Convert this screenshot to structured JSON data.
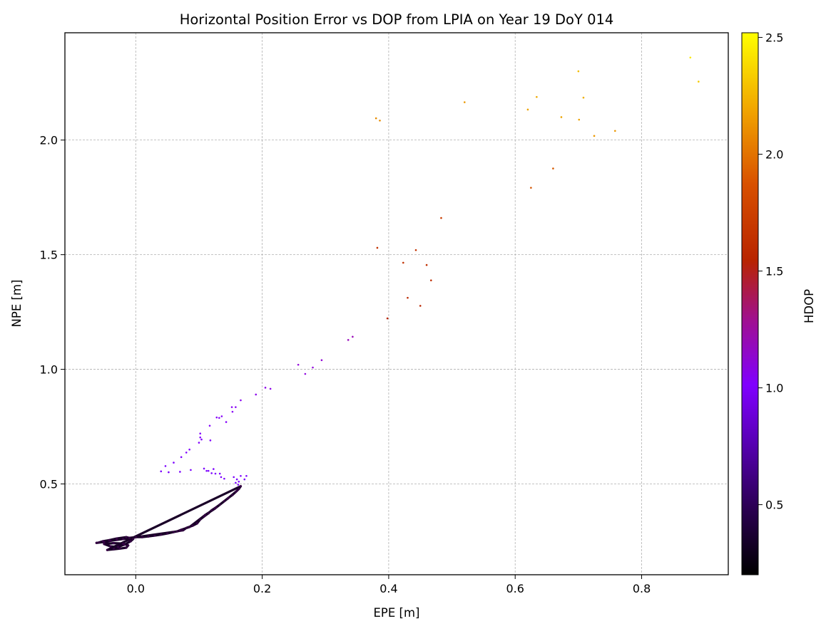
{
  "chart_data": {
    "type": "scatter",
    "title": "Horizontal Position Error vs DOP from LPIA on Year 19 DoY 014",
    "xlabel": "EPE [m]",
    "ylabel": "NPE [m]",
    "xlim": [
      -0.112,
      0.937
    ],
    "ylim": [
      0.104,
      2.468
    ],
    "xticks": [
      0.0,
      0.2,
      0.4,
      0.6,
      0.8
    ],
    "xtick_labels": [
      "0.0",
      "0.2",
      "0.4",
      "0.6",
      "0.8"
    ],
    "yticks": [
      0.5,
      1.0,
      1.5,
      2.0
    ],
    "ytick_labels": [
      "0.5",
      "1.0",
      "1.5",
      "2.0"
    ],
    "grid": true,
    "colorbar": {
      "label": "HDOP",
      "colormap": "gnuplot",
      "range": [
        0.2,
        2.52
      ],
      "ticks": [
        0.5,
        1.0,
        1.5,
        2.0,
        2.5
      ],
      "tick_labels": [
        "0.5",
        "1.0",
        "1.5",
        "2.0",
        "2.5"
      ]
    },
    "dense_track": {
      "description_hdop": 0.3,
      "points": [
        [
          -0.062,
          0.243
        ],
        [
          -0.05,
          0.247
        ],
        [
          -0.04,
          0.252
        ],
        [
          -0.03,
          0.256
        ],
        [
          -0.02,
          0.26
        ],
        [
          -0.01,
          0.265
        ],
        [
          0.0,
          0.268
        ],
        [
          0.01,
          0.268
        ],
        [
          0.02,
          0.271
        ],
        [
          0.03,
          0.275
        ],
        [
          0.04,
          0.279
        ],
        [
          0.05,
          0.284
        ],
        [
          0.06,
          0.29
        ],
        [
          0.07,
          0.296
        ],
        [
          0.075,
          0.298
        ],
        [
          0.08,
          0.308
        ],
        [
          0.09,
          0.318
        ],
        [
          0.097,
          0.328
        ],
        [
          0.102,
          0.345
        ],
        [
          0.108,
          0.358
        ],
        [
          0.115,
          0.372
        ],
        [
          0.12,
          0.385
        ],
        [
          0.127,
          0.398
        ],
        [
          0.133,
          0.41
        ],
        [
          0.14,
          0.425
        ],
        [
          0.147,
          0.44
        ],
        [
          0.153,
          0.452
        ],
        [
          0.158,
          0.465
        ],
        [
          0.163,
          0.478
        ],
        [
          0.166,
          0.49
        ],
        [
          -0.045,
          0.212
        ],
        [
          -0.035,
          0.215
        ],
        [
          -0.025,
          0.218
        ],
        [
          -0.015,
          0.222
        ],
        [
          -0.012,
          0.232
        ],
        [
          -0.02,
          0.24
        ],
        [
          -0.035,
          0.242
        ],
        [
          -0.05,
          0.238
        ],
        [
          -0.04,
          0.228
        ],
        [
          -0.028,
          0.225
        ],
        [
          -0.018,
          0.235
        ],
        [
          -0.008,
          0.25
        ],
        [
          -0.004,
          0.26
        ],
        [
          -0.015,
          0.268
        ],
        [
          -0.03,
          0.262
        ],
        [
          -0.042,
          0.255
        ],
        [
          -0.052,
          0.25
        ],
        [
          -0.058,
          0.245
        ],
        [
          0.065,
          0.293
        ],
        [
          0.072,
          0.3
        ],
        [
          0.085,
          0.312
        ],
        [
          0.11,
          0.365
        ],
        [
          0.125,
          0.392
        ],
        [
          0.145,
          0.435
        ],
        [
          0.16,
          0.47
        ]
      ]
    },
    "points": [
      [
        0.04,
        0.555,
        0.75
      ],
      [
        0.047,
        0.578,
        0.75
      ],
      [
        0.052,
        0.551,
        0.75
      ],
      [
        0.06,
        0.593,
        0.76
      ],
      [
        0.07,
        0.553,
        0.75
      ],
      [
        0.072,
        0.617,
        0.78
      ],
      [
        0.08,
        0.637,
        0.8
      ],
      [
        0.085,
        0.65,
        0.8
      ],
      [
        0.087,
        0.561,
        0.76
      ],
      [
        0.1,
        0.68,
        0.82
      ],
      [
        0.102,
        0.703,
        0.82
      ],
      [
        0.102,
        0.72,
        0.83
      ],
      [
        0.104,
        0.694,
        0.82
      ],
      [
        0.108,
        0.567,
        0.76
      ],
      [
        0.112,
        0.557,
        0.76
      ],
      [
        0.115,
        0.557,
        0.76
      ],
      [
        0.117,
        0.754,
        0.84
      ],
      [
        0.118,
        0.69,
        0.82
      ],
      [
        0.12,
        0.547,
        0.76
      ],
      [
        0.123,
        0.565,
        0.77
      ],
      [
        0.126,
        0.545,
        0.76
      ],
      [
        0.128,
        0.79,
        0.86
      ],
      [
        0.132,
        0.788,
        0.86
      ],
      [
        0.133,
        0.545,
        0.76
      ],
      [
        0.135,
        0.53,
        0.75
      ],
      [
        0.136,
        0.795,
        0.86
      ],
      [
        0.14,
        0.523,
        0.75
      ],
      [
        0.143,
        0.77,
        0.85
      ],
      [
        0.152,
        0.835,
        0.88
      ],
      [
        0.153,
        0.815,
        0.87
      ],
      [
        0.155,
        0.53,
        0.75
      ],
      [
        0.158,
        0.835,
        0.88
      ],
      [
        0.158,
        0.505,
        0.74
      ],
      [
        0.16,
        0.52,
        0.75
      ],
      [
        0.162,
        0.497,
        0.74
      ],
      [
        0.163,
        0.51,
        0.74
      ],
      [
        0.166,
        0.865,
        0.9
      ],
      [
        0.166,
        0.535,
        0.75
      ],
      [
        0.172,
        0.52,
        0.75
      ],
      [
        0.175,
        0.535,
        0.75
      ],
      [
        0.19,
        0.89,
        0.92
      ],
      [
        0.205,
        0.92,
        0.93
      ],
      [
        0.213,
        0.915,
        0.93
      ],
      [
        0.257,
        1.02,
        0.98
      ],
      [
        0.268,
        0.98,
        0.96
      ],
      [
        0.28,
        1.008,
        0.97
      ],
      [
        0.294,
        1.04,
        0.99
      ],
      [
        0.336,
        1.128,
        1.05
      ],
      [
        0.343,
        1.142,
        1.06
      ],
      [
        0.382,
        1.53,
        1.55
      ],
      [
        0.398,
        1.222,
        1.42
      ],
      [
        0.423,
        1.465,
        1.52
      ],
      [
        0.43,
        1.312,
        1.45
      ],
      [
        0.443,
        1.52,
        1.55
      ],
      [
        0.45,
        1.277,
        1.44
      ],
      [
        0.46,
        1.455,
        1.52
      ],
      [
        0.467,
        1.388,
        1.5
      ],
      [
        0.483,
        1.66,
        1.65
      ],
      [
        0.38,
        2.095,
        2.1
      ],
      [
        0.386,
        2.085,
        2.1
      ],
      [
        0.52,
        2.165,
        2.15
      ],
      [
        0.62,
        2.133,
        2.2
      ],
      [
        0.625,
        1.792,
        1.8
      ],
      [
        0.634,
        2.188,
        2.22
      ],
      [
        0.66,
        1.876,
        1.85
      ],
      [
        0.673,
        2.1,
        2.2
      ],
      [
        0.7,
        2.3,
        2.3
      ],
      [
        0.701,
        2.089,
        2.2
      ],
      [
        0.708,
        2.185,
        2.25
      ],
      [
        0.725,
        2.018,
        2.15
      ],
      [
        0.758,
        2.04,
        2.15
      ],
      [
        0.877,
        2.36,
        2.45
      ],
      [
        0.89,
        2.255,
        2.35
      ]
    ]
  }
}
